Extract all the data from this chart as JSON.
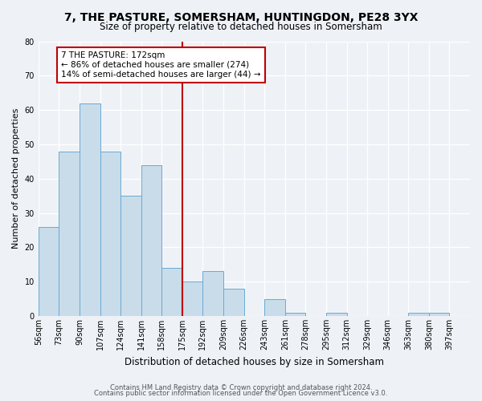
{
  "title": "7, THE PASTURE, SOMERSHAM, HUNTINGDON, PE28 3YX",
  "subtitle": "Size of property relative to detached houses in Somersham",
  "xlabel": "Distribution of detached houses by size in Somersham",
  "ylabel": "Number of detached properties",
  "bin_labels": [
    "56sqm",
    "73sqm",
    "90sqm",
    "107sqm",
    "124sqm",
    "141sqm",
    "158sqm",
    "175sqm",
    "192sqm",
    "209sqm",
    "226sqm",
    "243sqm",
    "261sqm",
    "278sqm",
    "295sqm",
    "312sqm",
    "329sqm",
    "346sqm",
    "363sqm",
    "380sqm",
    "397sqm"
  ],
  "bar_heights": [
    26,
    48,
    62,
    48,
    35,
    44,
    14,
    10,
    13,
    8,
    0,
    5,
    1,
    0,
    1,
    0,
    0,
    0,
    1,
    1,
    0
  ],
  "bar_color": "#c9dcea",
  "bar_edge_color": "#6aaad4",
  "vline_color": "#c00000",
  "annotation_line1": "7 THE PASTURE: 172sqm",
  "annotation_line2": "← 86% of detached houses are smaller (274)",
  "annotation_line3": "14% of semi-detached houses are larger (44) →",
  "annotation_box_color": "#ffffff",
  "annotation_box_edge_color": "#c00000",
  "ylim": [
    0,
    80
  ],
  "yticks": [
    0,
    10,
    20,
    30,
    40,
    50,
    60,
    70,
    80
  ],
  "footer1": "Contains HM Land Registry data © Crown copyright and database right 2024.",
  "footer2": "Contains public sector information licensed under the Open Government Licence v3.0.",
  "bg_color": "#eef2f7",
  "plot_bg_color": "#eef2f7",
  "title_fontsize": 10,
  "subtitle_fontsize": 8.5,
  "xlabel_fontsize": 8.5,
  "ylabel_fontsize": 8,
  "tick_fontsize": 7,
  "annotation_fontsize": 7.5,
  "footer_fontsize": 6.0
}
